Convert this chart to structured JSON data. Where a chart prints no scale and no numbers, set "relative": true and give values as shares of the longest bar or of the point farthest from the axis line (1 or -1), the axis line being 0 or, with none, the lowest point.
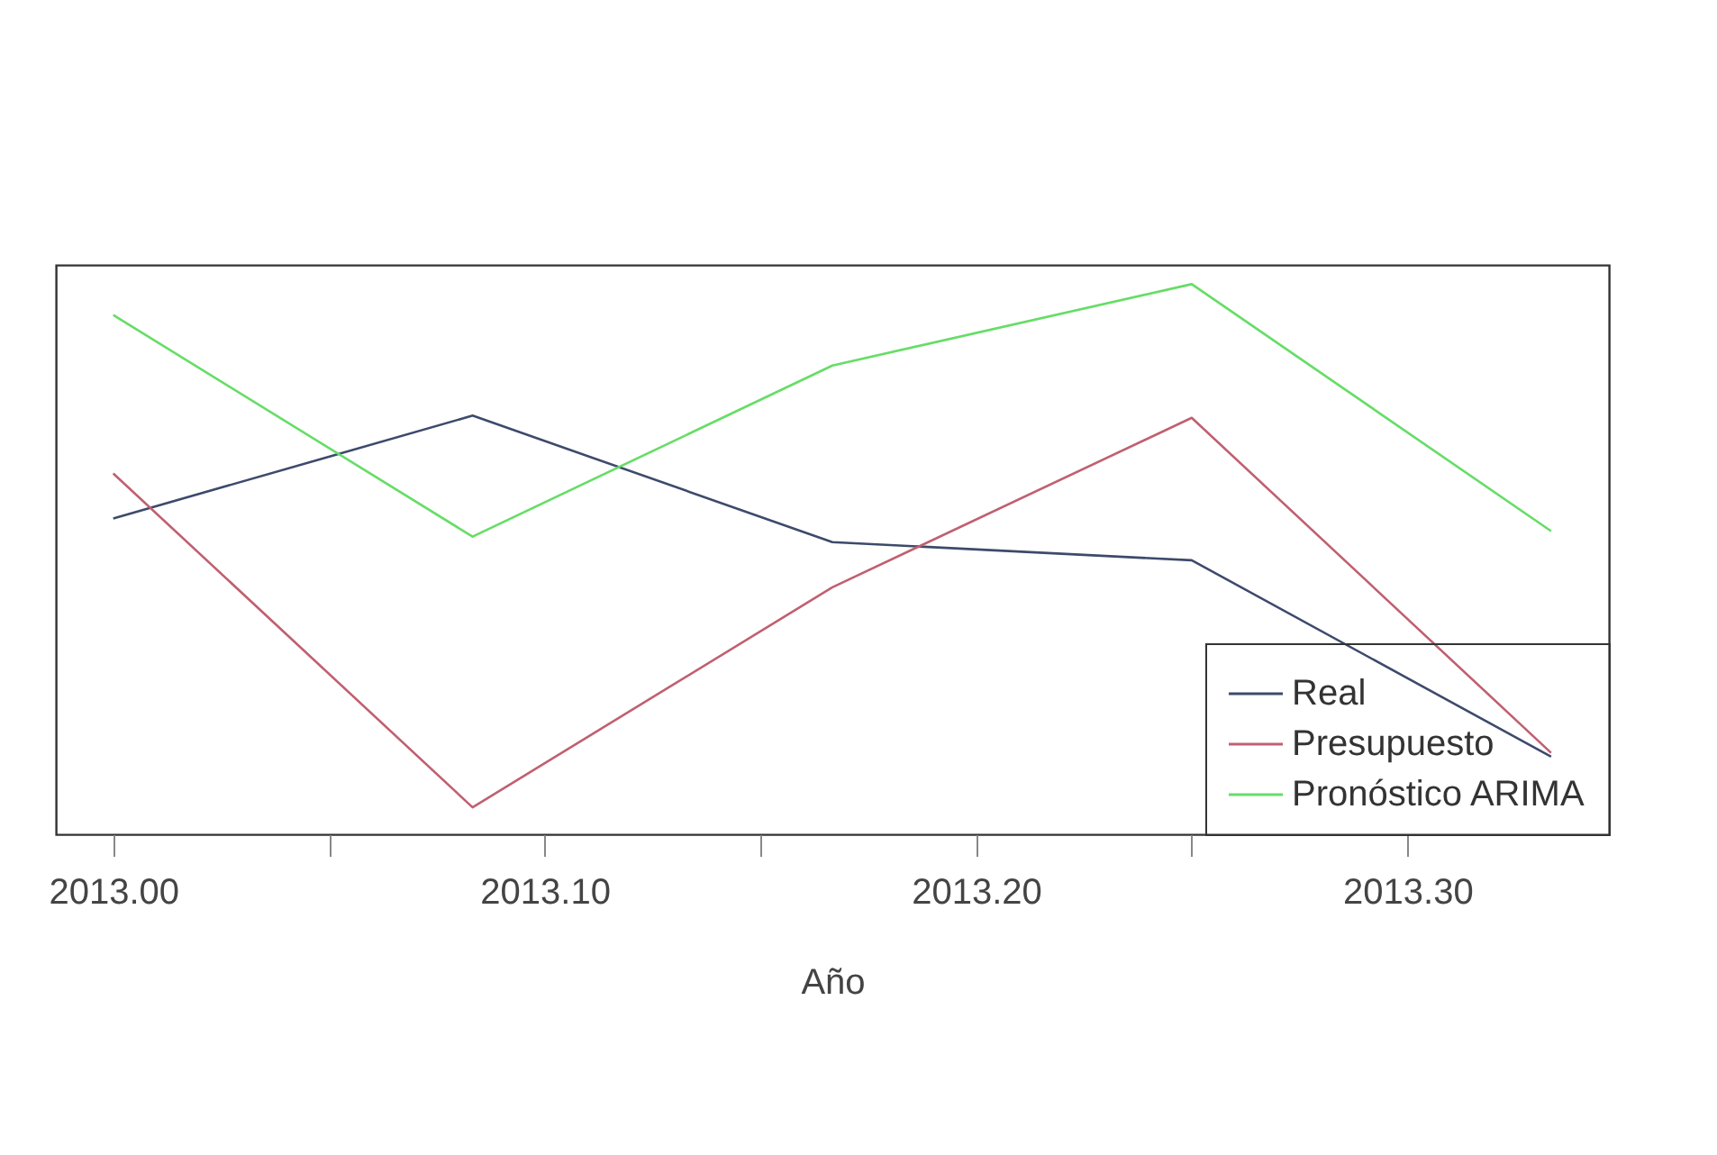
{
  "chart_data": {
    "type": "line",
    "xlabel": "Año",
    "relative": true,
    "x": [
      2013,
      2013.0833,
      2013.1667,
      2013.25,
      2013.3333
    ],
    "xlim": [
      2012.9867,
      2013.3467
    ],
    "xticks": [
      {
        "value": 2013,
        "label": "2013.00"
      },
      {
        "value": 2013.05,
        "label": null
      },
      {
        "value": 2013.1,
        "label": "2013.10"
      },
      {
        "value": 2013.15,
        "label": null
      },
      {
        "value": 2013.2,
        "label": "2013.20"
      },
      {
        "value": 2013.25,
        "label": null
      },
      {
        "value": 2013.3,
        "label": "2013.30"
      }
    ],
    "series": [
      {
        "name": "Real",
        "color": "#3d4a6b",
        "values": [
          0.574,
          0.761,
          0.531,
          0.498,
          0.141
        ]
      },
      {
        "name": "Presupuesto",
        "color": "#c06070",
        "values": [
          0.656,
          0.049,
          0.449,
          0.757,
          0.148
        ]
      },
      {
        "name": "Pronóstico ARIMA",
        "color": "#66dd66",
        "values": [
          0.944,
          0.541,
          0.852,
          1.0,
          0.551
        ]
      }
    ],
    "legend": "bottom right",
    "grid": false,
    "marker": "none",
    "line_style": "solid"
  }
}
